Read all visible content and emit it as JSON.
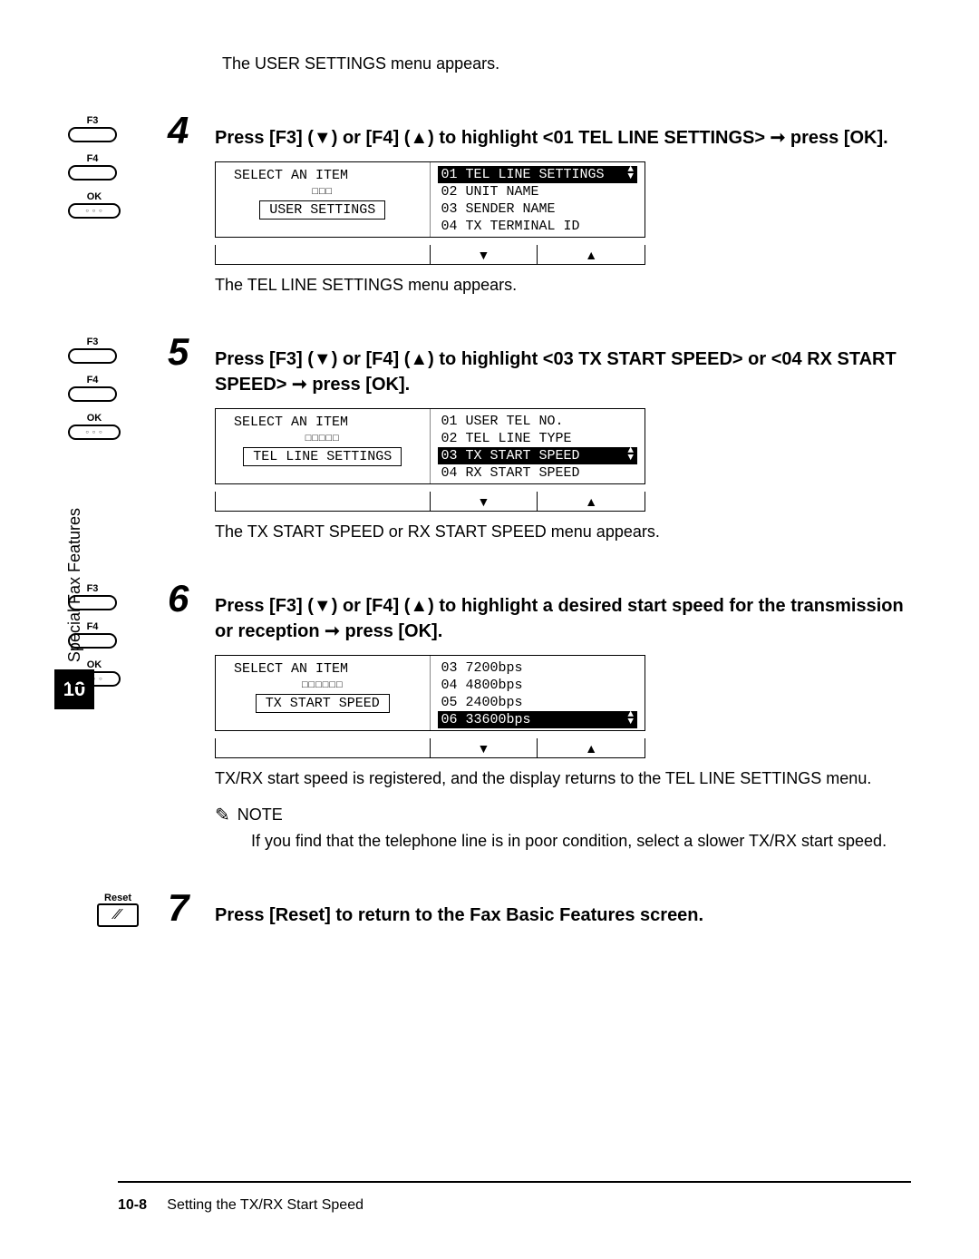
{
  "intro": "The USER SETTINGS menu appears.",
  "vertical_tab": {
    "label": "Special Fax Features",
    "number": "10"
  },
  "keys": {
    "f3": "F3",
    "f4": "F4",
    "ok": "OK",
    "reset": "Reset"
  },
  "steps": {
    "s4": {
      "num": "4",
      "title": "Press [F3] (▼) or [F4] (▲) to highlight <01 TEL LINE SETTINGS> ➞ press [OK].",
      "lcd_left_title": "SELECT AN ITEM",
      "lcd_left_bar": "□□□",
      "lcd_left_box": "USER SETTINGS",
      "items": [
        {
          "text": "01 TEL LINE SETTINGS",
          "selected": true
        },
        {
          "text": "02 UNIT NAME",
          "selected": false
        },
        {
          "text": "03 SENDER NAME",
          "selected": false
        },
        {
          "text": "04 TX TERMINAL ID",
          "selected": false
        }
      ],
      "after": "The TEL LINE SETTINGS menu appears."
    },
    "s5": {
      "num": "5",
      "title": "Press [F3] (▼) or [F4] (▲) to highlight <03 TX START SPEED> or <04 RX START SPEED> ➞ press [OK].",
      "lcd_left_title": "SELECT AN ITEM",
      "lcd_left_bar": "□□□□□",
      "lcd_left_box": "TEL LINE SETTINGS",
      "items": [
        {
          "text": "01 USER TEL NO.",
          "selected": false
        },
        {
          "text": "02 TEL LINE TYPE",
          "selected": false
        },
        {
          "text": "03 TX START SPEED",
          "selected": true
        },
        {
          "text": "04 RX START SPEED",
          "selected": false
        }
      ],
      "after": "The TX START SPEED or RX START SPEED menu appears."
    },
    "s6": {
      "num": "6",
      "title": "Press [F3] (▼) or [F4] (▲) to highlight a desired start speed for the transmission or reception ➞ press [OK].",
      "lcd_left_title": "SELECT AN ITEM",
      "lcd_left_bar": "□□□□□□",
      "lcd_left_box": "TX START SPEED",
      "items": [
        {
          "text": "03 7200bps",
          "selected": false
        },
        {
          "text": "04 4800bps",
          "selected": false
        },
        {
          "text": "05 2400bps",
          "selected": false
        },
        {
          "text": "06 33600bps",
          "selected": true
        }
      ],
      "after": "TX/RX start speed is registered, and the display returns to the TEL LINE SETTINGS menu.",
      "note_label": "NOTE",
      "note_text": "If you find that the telephone line is in poor condition, select a slower TX/RX start speed."
    },
    "s7": {
      "num": "7",
      "title": "Press [Reset] to return to the Fax Basic Features screen."
    }
  },
  "footer": {
    "page": "10-8",
    "title": "Setting the TX/RX Start Speed"
  }
}
